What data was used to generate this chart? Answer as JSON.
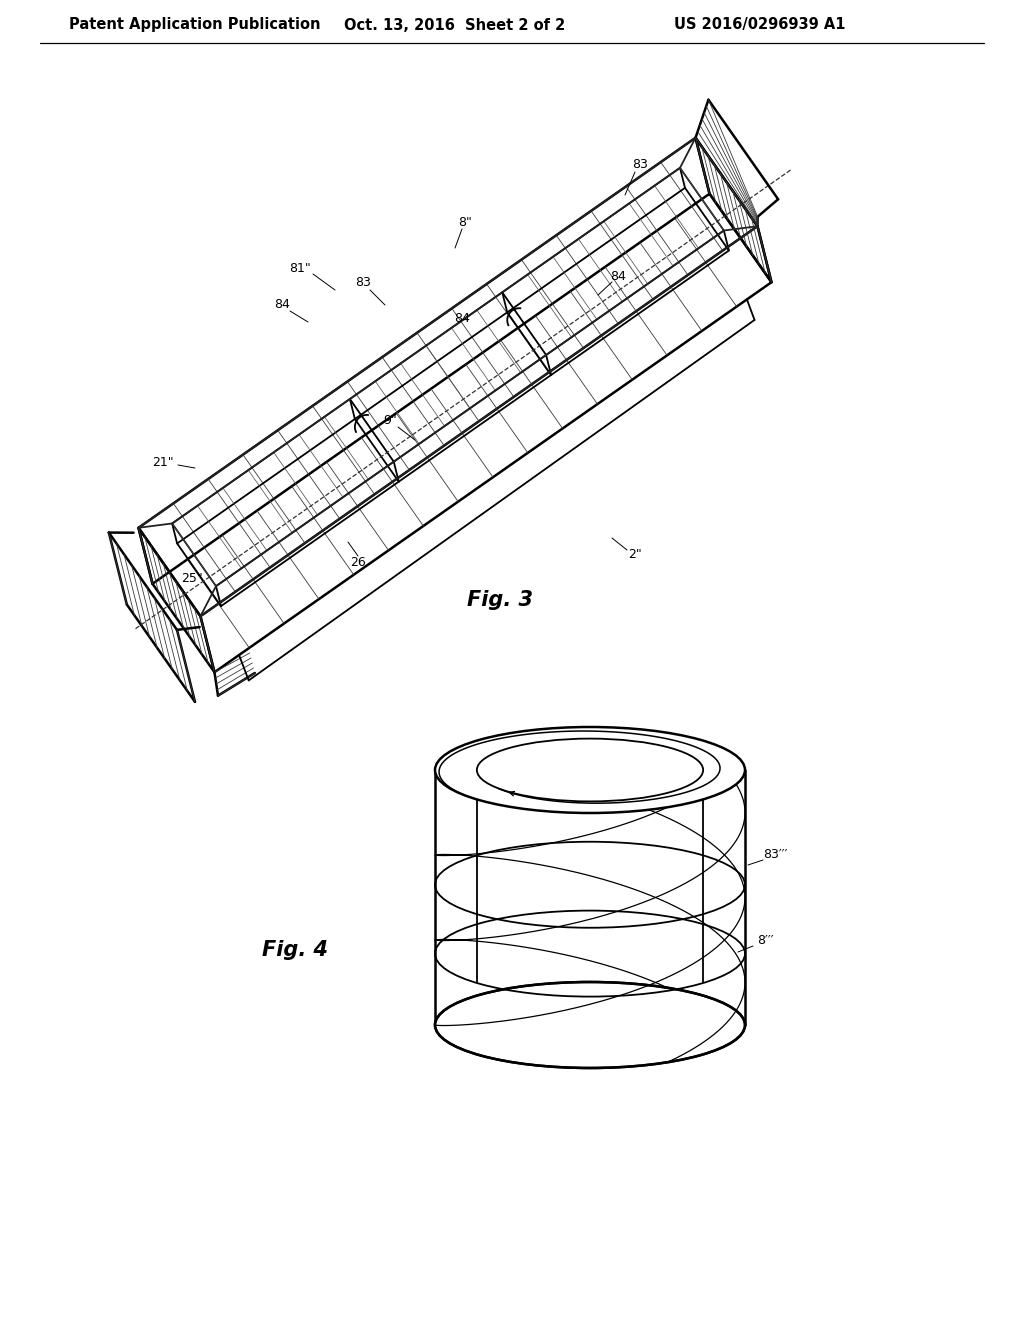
{
  "bg_color": "#ffffff",
  "header_left": "Patent Application Publication",
  "header_mid": "Oct. 13, 2016  Sheet 2 of 2",
  "header_right": "US 2016/0296939 A1",
  "header_fontsize": 10.5,
  "line_color": "#000000",
  "lw": 1.3,
  "lw_thick": 1.8,
  "lw_thin": 0.7
}
